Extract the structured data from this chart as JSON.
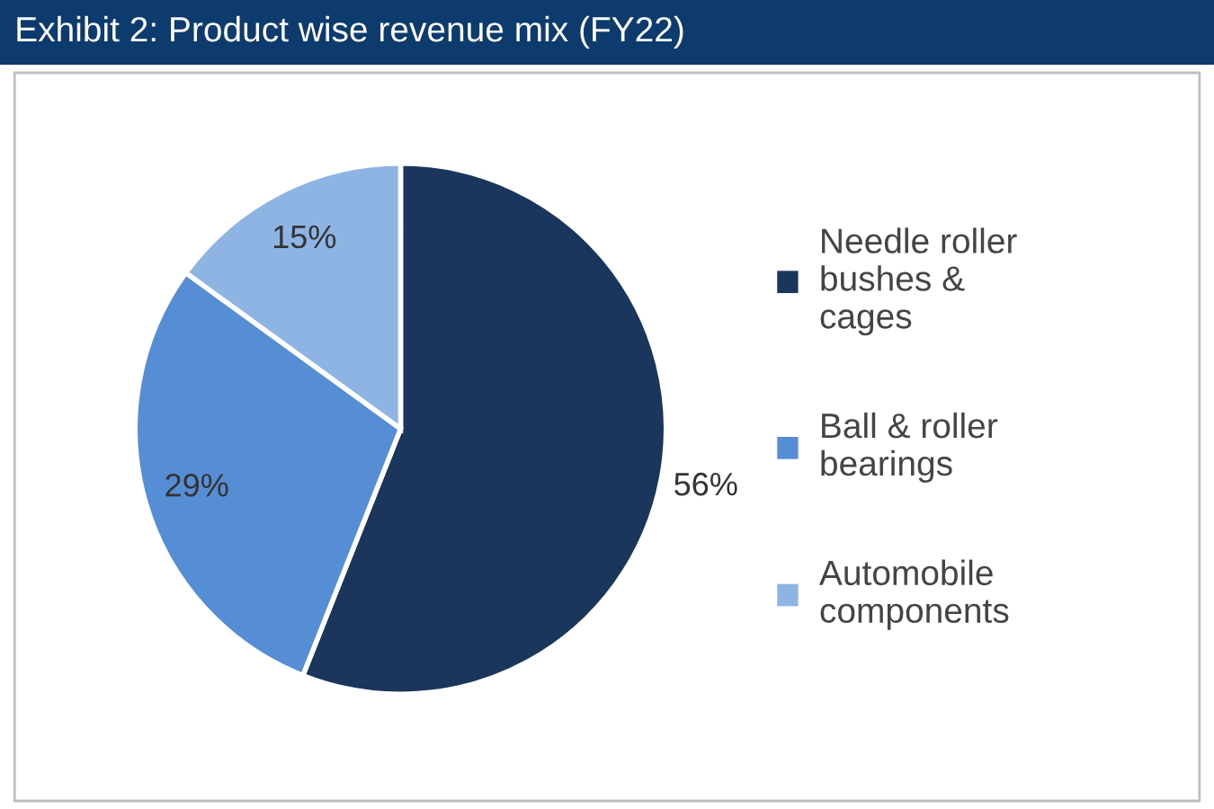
{
  "chart_data": {
    "type": "pie",
    "title": "Exhibit 2: Product wise revenue mix (FY22)",
    "categories": [
      "Needle roller bushes & cages",
      "Ball & roller bearings",
      "Automobile components"
    ],
    "values": [
      56,
      29,
      15
    ],
    "colors": [
      "#1b365d",
      "#558ed5",
      "#8db4e2"
    ],
    "value_labels": [
      "56%",
      "29%",
      "15%"
    ],
    "legend": "right"
  }
}
